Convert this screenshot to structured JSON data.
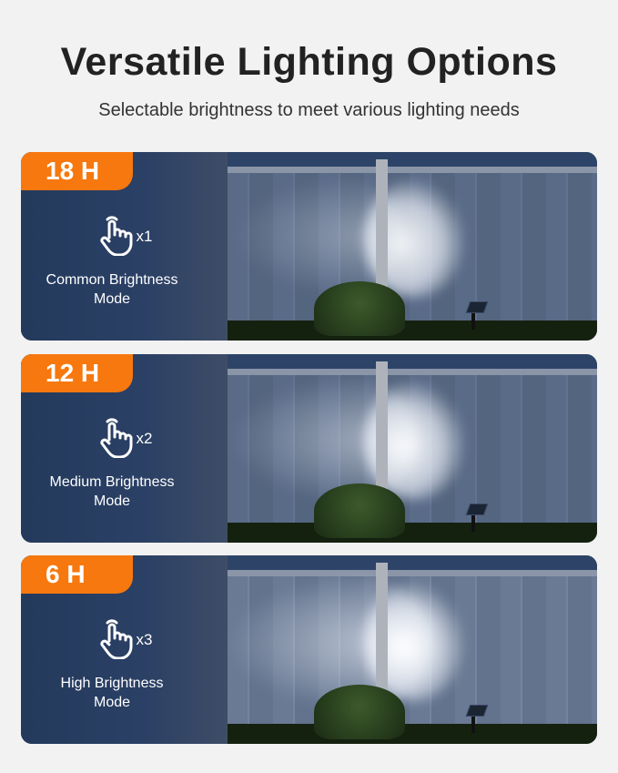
{
  "header": {
    "title": "Versatile Lighting Options",
    "subtitle": "Selectable brightness to meet various lighting needs"
  },
  "accent_color": "#f7780f",
  "modes": [
    {
      "hours": "18 H",
      "presses": "x1",
      "label_line1": "Common Brightness",
      "label_line2": "Mode",
      "icon": "hand-tap-icon",
      "brightness": 1
    },
    {
      "hours": "12 H",
      "presses": "x2",
      "label_line1": "Medium Brightness",
      "label_line2": "Mode",
      "icon": "hand-tap-icon",
      "brightness": 2
    },
    {
      "hours": "6 H",
      "presses": "x3",
      "label_line1": "High Brightness",
      "label_line2": "Mode",
      "icon": "hand-tap-icon",
      "brightness": 3
    }
  ]
}
